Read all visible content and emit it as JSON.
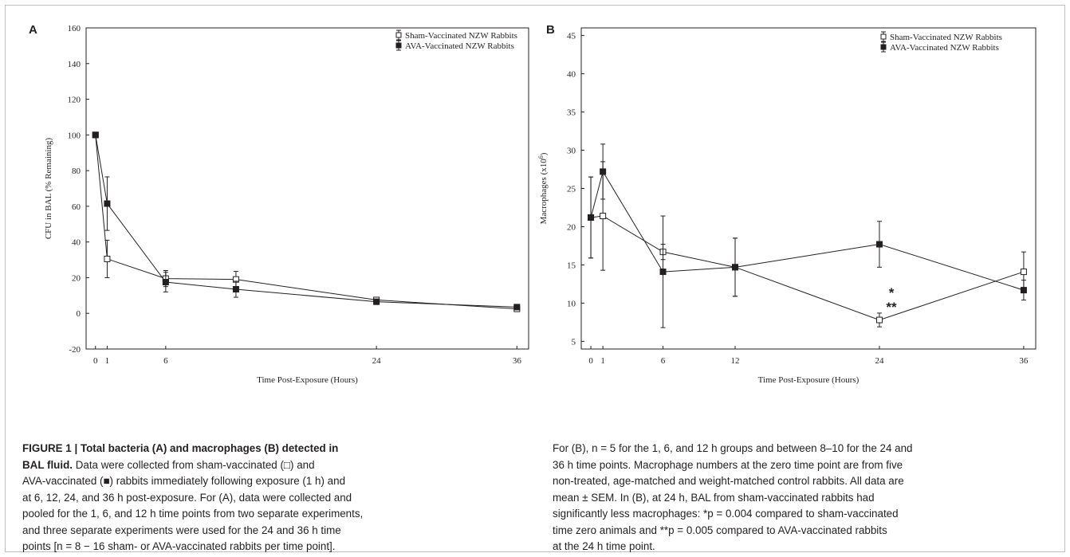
{
  "chart_data": [
    {
      "type": "line",
      "panel_label": "A",
      "ylabel": "CFU in BAL (% Remaining)",
      "xlabel": "Time Post-Exposure (Hours)",
      "xlim": [
        -0.8,
        37
      ],
      "ylim": [
        -20,
        160
      ],
      "xticks": [
        0,
        1,
        6,
        24,
        36
      ],
      "yticks": [
        -20,
        0,
        20,
        40,
        60,
        80,
        100,
        120,
        140,
        160
      ],
      "legend_position": "top-right",
      "series": [
        {
          "name": "Sham-Vaccinated NZW Rabbits",
          "marker": "open-square",
          "points": [
            {
              "x": 0,
              "y": 100,
              "err": 0
            },
            {
              "x": 1,
              "y": 30.5,
              "err": 10.5
            },
            {
              "x": 6,
              "y": 19.5,
              "err": 4.5
            },
            {
              "x": 12,
              "y": 19,
              "err": 4.5
            },
            {
              "x": 24,
              "y": 7.5,
              "err": 1.5
            },
            {
              "x": 36,
              "y": 2.5,
              "err": 1
            }
          ]
        },
        {
          "name": "AVA-Vaccinated NZW Rabbits",
          "marker": "filled-square",
          "points": [
            {
              "x": 0,
              "y": 100,
              "err": 0
            },
            {
              "x": 1,
              "y": 61.5,
              "err": 15
            },
            {
              "x": 6,
              "y": 17.5,
              "err": 5.5
            },
            {
              "x": 12,
              "y": 13.5,
              "err": 4.5
            },
            {
              "x": 24,
              "y": 6.5,
              "err": 1.5
            },
            {
              "x": 36,
              "y": 3.5,
              "err": 1
            }
          ]
        }
      ]
    },
    {
      "type": "line",
      "panel_label": "B",
      "ylabel": "Macrophages (x10",
      "ylabel_sup": "6",
      "ylabel_close": ")",
      "xlabel": "Time Post-Exposure (Hours)",
      "xlim": [
        -0.8,
        37
      ],
      "ylim": [
        4,
        46
      ],
      "xticks": [
        0,
        1,
        6,
        12,
        24,
        36
      ],
      "yticks": [
        5,
        10,
        15,
        20,
        25,
        30,
        35,
        40,
        45
      ],
      "legend_position": "top-right",
      "annotations": [
        {
          "text": "*",
          "x": 25,
          "y": 10.8
        },
        {
          "text": "**",
          "x": 25,
          "y": 8.9
        }
      ],
      "series": [
        {
          "name": "Sham-Vaccinated NZW Rabbits",
          "marker": "open-square",
          "points": [
            {
              "x": 0,
              "y": 21.2,
              "err": 5.3
            },
            {
              "x": 1,
              "y": 21.4,
              "err": 7.1
            },
            {
              "x": 6,
              "y": 16.7,
              "err": 1.0
            },
            {
              "x": 12,
              "y": 14.7,
              "err": 3.8
            },
            {
              "x": 24,
              "y": 7.8,
              "err": 0.9
            },
            {
              "x": 36,
              "y": 14.1,
              "err": 2.6
            }
          ]
        },
        {
          "name": "AVA-Vaccinated NZW Rabbits",
          "marker": "filled-square",
          "points": [
            {
              "x": 0,
              "y": 21.2,
              "err": 5.3
            },
            {
              "x": 1,
              "y": 27.2,
              "err": 3.6
            },
            {
              "x": 6,
              "y": 14.1,
              "err": 7.3
            },
            {
              "x": 12,
              "y": 14.7,
              "err": 3.8
            },
            {
              "x": 24,
              "y": 17.7,
              "err": 3.0
            },
            {
              "x": 36,
              "y": 11.7,
              "err": 1.3
            }
          ]
        }
      ]
    }
  ],
  "caption": {
    "left": {
      "line1": "FIGURE 1 | Total bacteria (A) and macrophages (B) detected in",
      "line2_bold": "BAL fluid.",
      "line2_rest": " Data were collected from sham-vaccinated (□) and",
      "line3": "AVA-vaccinated (■) rabbits immediately following exposure (1 h) and",
      "line4": "at 6, 12, 24, and 36 h post-exposure. For (A), data were collected and",
      "line5": "pooled for the 1, 6, and 12 h time points from two separate experiments,",
      "line6": "and three separate experiments were used for the 24 and 36 h time",
      "line7": "points [n = 8 − 16 sham- or AVA-vaccinated rabbits per time point]."
    },
    "right": {
      "line1": "For (B), n = 5 for the 1, 6, and 12 h groups and between 8–10 for the 24 and",
      "line2": "36 h time points. Macrophage numbers at the zero time point are from five",
      "line3": "non-treated, age-matched and weight-matched control rabbits. All data are",
      "line4": "mean ± SEM. In (B), at 24 h, BAL from sham-vaccinated rabbits had",
      "line5": "significantly less macrophages: *p = 0.004 compared to sham-vaccinated",
      "line6": "time zero animals and **p = 0.005 compared to AVA-vaccinated rabbits",
      "line7": "at the 24 h time point."
    }
  }
}
